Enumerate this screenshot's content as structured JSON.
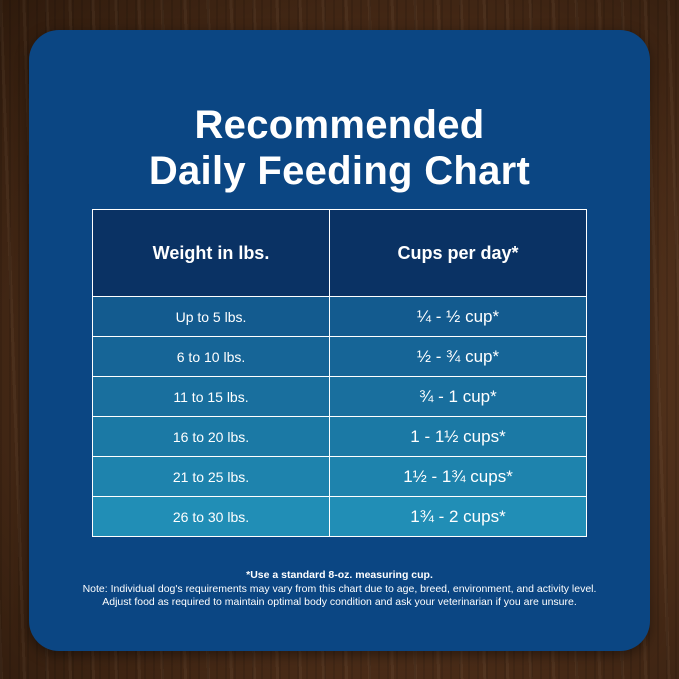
{
  "title": {
    "line1": "Recommended",
    "line2": "Daily Feeding Chart"
  },
  "table": {
    "headers": [
      "Weight in lbs.",
      "Cups per day*"
    ],
    "rows": [
      {
        "weight": "Up to 5 lbs.",
        "cups": "¼ - ½ cup*"
      },
      {
        "weight": "6 to 10 lbs.",
        "cups": "½ - ¾ cup*"
      },
      {
        "weight": "11 to 15 lbs.",
        "cups": "¾ - 1 cup*"
      },
      {
        "weight": "16 to 20 lbs.",
        "cups": "1 - 1½ cups*"
      },
      {
        "weight": "21 to 25 lbs.",
        "cups": "1½ - 1¾ cups*"
      },
      {
        "weight": "26 to 30 lbs.",
        "cups": "1¾ - 2 cups*"
      }
    ],
    "header_color": "#0a3264",
    "row_colors": [
      "#135b8f",
      "#166597",
      "#196f9e",
      "#1b79a5",
      "#1e83ad",
      "#218eb6"
    ]
  },
  "footnote": {
    "standard": "*Use a standard 8-oz. measuring cup.",
    "note_line1": "Note: Individual dog's requirements may vary from this chart due to age, breed, environment, and activity level.",
    "note_line2": "Adjust food as required to maintain optimal body condition and ask your veterinarian if you are unsure."
  },
  "colors": {
    "card": "#0b4683",
    "text": "#ffffff",
    "background": "#4a2c18"
  }
}
